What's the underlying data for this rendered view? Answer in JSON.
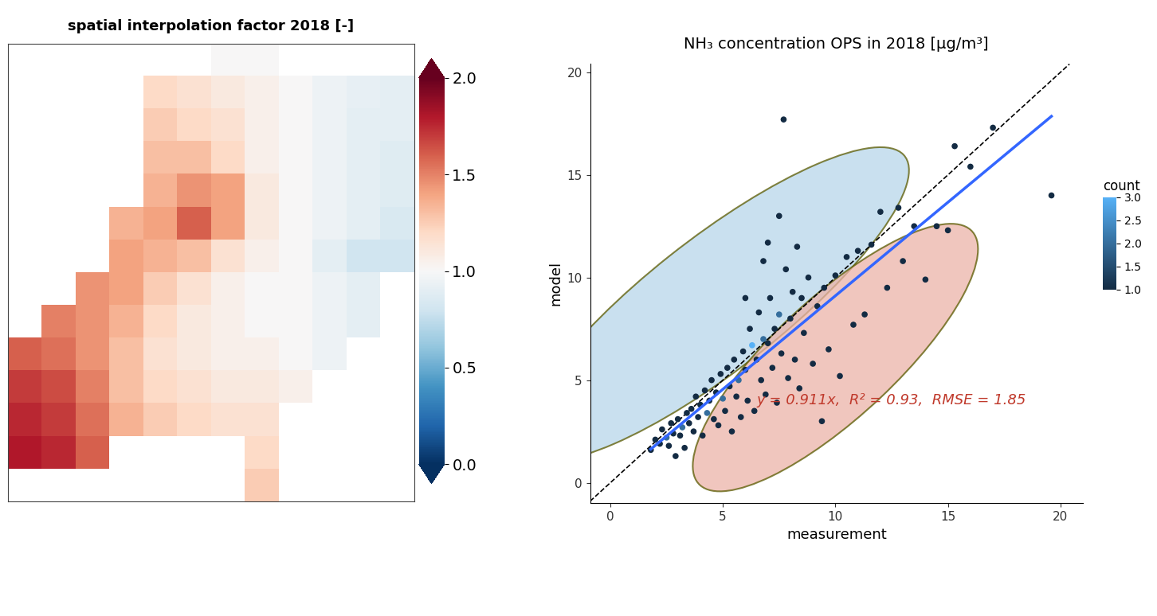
{
  "chart_data": [
    {
      "type": "heatmap",
      "title": "spatial interpolation factor 2018 [-]",
      "tick_labels": false,
      "cells": [
        [
          null,
          null,
          null,
          null,
          null,
          null,
          1.0,
          1.0,
          null,
          null,
          null,
          null
        ],
        [
          null,
          null,
          null,
          null,
          1.2,
          1.15,
          1.1,
          1.05,
          1.0,
          0.95,
          0.92,
          0.9
        ],
        [
          null,
          null,
          null,
          null,
          1.25,
          1.2,
          1.15,
          1.05,
          1.0,
          0.95,
          0.9,
          0.9
        ],
        [
          null,
          null,
          null,
          null,
          1.3,
          1.3,
          1.2,
          1.05,
          1.0,
          0.95,
          0.9,
          0.88
        ],
        [
          null,
          null,
          null,
          null,
          1.35,
          1.45,
          1.4,
          1.1,
          1.0,
          0.95,
          0.9,
          0.88
        ],
        [
          null,
          null,
          null,
          1.35,
          1.4,
          1.6,
          1.4,
          1.1,
          1.0,
          0.95,
          0.9,
          0.85
        ],
        [
          null,
          null,
          null,
          1.4,
          1.35,
          1.3,
          1.15,
          1.05,
          1.0,
          0.9,
          0.8,
          0.8
        ],
        [
          null,
          null,
          1.45,
          1.4,
          1.25,
          1.15,
          1.05,
          1.0,
          1.0,
          0.95,
          0.9,
          null
        ],
        [
          null,
          1.5,
          1.45,
          1.35,
          1.2,
          1.1,
          1.05,
          1.0,
          1.0,
          0.95,
          0.9,
          null
        ],
        [
          1.6,
          1.55,
          1.45,
          1.3,
          1.15,
          1.1,
          1.05,
          1.05,
          1.0,
          0.95,
          null,
          null
        ],
        [
          1.7,
          1.65,
          1.5,
          1.3,
          1.2,
          1.15,
          1.1,
          1.1,
          1.05,
          null,
          null,
          null
        ],
        [
          1.75,
          1.7,
          1.55,
          1.35,
          1.25,
          1.2,
          1.15,
          1.15,
          null,
          null,
          null,
          null
        ],
        [
          1.8,
          1.75,
          1.6,
          null,
          null,
          null,
          null,
          1.2,
          null,
          null,
          null,
          null
        ],
        [
          null,
          null,
          null,
          null,
          null,
          null,
          null,
          1.25,
          null,
          null,
          null,
          null
        ]
      ],
      "colorbar": {
        "range": [
          0,
          2
        ],
        "ticks": [
          {
            "value": 0,
            "label": "0.0"
          },
          0.5,
          {
            "value": 1,
            "label": "1.0"
          },
          1.5,
          {
            "value": 2,
            "label": "2.0"
          }
        ]
      }
    },
    {
      "type": "scatter",
      "title": "NH₃ concentration OPS in 2018 [µg/m³]",
      "x_label": "measurement",
      "y_label": "model",
      "xlim": [
        -0.9,
        21.0
      ],
      "ylim": [
        -1.0,
        20.4
      ],
      "xticks": [
        0,
        5,
        10,
        15,
        20
      ],
      "yticks": [
        0,
        5,
        10,
        15,
        20
      ],
      "annotation": "y = 0.911x,  R² = 0.93,  RMSE = 1.85",
      "reference_slope": 1,
      "fit": {
        "slope": 0.911,
        "x": [
          1.8,
          19.6
        ],
        "color": "#3366ff"
      },
      "count_colorbar": {
        "title": "count",
        "range": [
          1,
          3
        ],
        "ticks": [
          {
            "value": 1,
            "label": "1.0"
          },
          1.5,
          {
            "value": 2,
            "label": "2.0"
          },
          2.5,
          {
            "value": 3,
            "label": "3.0"
          }
        ]
      },
      "points": [
        [
          1.8,
          1.6,
          1
        ],
        [
          2.0,
          2.1,
          1
        ],
        [
          2.2,
          1.9,
          1
        ],
        [
          2.3,
          2.6,
          1
        ],
        [
          2.5,
          2.2,
          2
        ],
        [
          2.6,
          1.8,
          1
        ],
        [
          2.7,
          2.9,
          1
        ],
        [
          2.8,
          2.4,
          1
        ],
        [
          2.9,
          1.3,
          1
        ],
        [
          3.0,
          3.1,
          1
        ],
        [
          3.1,
          2.3,
          1
        ],
        [
          3.2,
          2.7,
          2
        ],
        [
          3.3,
          1.7,
          1
        ],
        [
          3.4,
          3.4,
          1
        ],
        [
          3.5,
          2.9,
          1
        ],
        [
          3.6,
          3.6,
          1
        ],
        [
          3.7,
          2.5,
          1
        ],
        [
          3.8,
          4.2,
          1
        ],
        [
          3.9,
          3.2,
          1
        ],
        [
          4.0,
          3.8,
          1
        ],
        [
          4.1,
          2.3,
          1
        ],
        [
          4.2,
          4.5,
          1
        ],
        [
          4.3,
          3.4,
          2
        ],
        [
          4.4,
          4.0,
          1
        ],
        [
          4.5,
          5.0,
          1
        ],
        [
          4.6,
          3.1,
          1
        ],
        [
          4.7,
          4.4,
          1
        ],
        [
          4.8,
          2.8,
          1
        ],
        [
          4.9,
          5.3,
          1
        ],
        [
          5.0,
          4.1,
          2
        ],
        [
          5.1,
          3.5,
          1
        ],
        [
          5.2,
          5.6,
          1
        ],
        [
          5.3,
          4.7,
          1
        ],
        [
          5.4,
          2.5,
          1
        ],
        [
          5.5,
          6.0,
          1
        ],
        [
          5.6,
          4.2,
          1
        ],
        [
          5.7,
          5.0,
          2
        ],
        [
          5.8,
          3.2,
          1
        ],
        [
          5.9,
          6.4,
          1
        ],
        [
          6.0,
          5.5,
          1
        ],
        [
          6.0,
          9.0,
          1
        ],
        [
          6.1,
          4.0,
          1
        ],
        [
          6.2,
          7.5,
          1
        ],
        [
          6.3,
          6.7,
          3
        ],
        [
          6.4,
          3.5,
          1
        ],
        [
          6.5,
          6.0,
          1
        ],
        [
          6.6,
          8.3,
          1
        ],
        [
          6.7,
          5.0,
          1
        ],
        [
          6.8,
          7.0,
          2
        ],
        [
          6.8,
          10.8,
          1
        ],
        [
          6.9,
          4.3,
          1
        ],
        [
          7.0,
          6.8,
          1
        ],
        [
          7.0,
          11.7,
          1
        ],
        [
          7.1,
          9.0,
          1
        ],
        [
          7.2,
          5.6,
          1
        ],
        [
          7.3,
          7.5,
          1
        ],
        [
          7.4,
          3.9,
          1
        ],
        [
          7.5,
          8.2,
          2
        ],
        [
          7.5,
          13.0,
          1
        ],
        [
          7.6,
          6.3,
          1
        ],
        [
          7.7,
          17.7,
          1
        ],
        [
          7.8,
          10.4,
          1
        ],
        [
          7.9,
          5.1,
          1
        ],
        [
          8.0,
          8.0,
          1
        ],
        [
          8.1,
          9.3,
          1
        ],
        [
          8.2,
          6.0,
          1
        ],
        [
          8.3,
          11.5,
          1
        ],
        [
          8.4,
          4.6,
          1
        ],
        [
          8.5,
          9.0,
          1
        ],
        [
          8.6,
          7.3,
          1
        ],
        [
          8.8,
          10.0,
          1
        ],
        [
          9.0,
          5.8,
          1
        ],
        [
          9.2,
          8.6,
          1
        ],
        [
          9.4,
          3.0,
          1
        ],
        [
          9.5,
          9.5,
          1
        ],
        [
          9.7,
          6.5,
          1
        ],
        [
          10.0,
          10.1,
          1
        ],
        [
          10.2,
          5.2,
          1
        ],
        [
          10.5,
          11.0,
          1
        ],
        [
          10.8,
          7.7,
          1
        ],
        [
          11.0,
          11.3,
          1
        ],
        [
          11.3,
          8.2,
          1
        ],
        [
          11.6,
          11.6,
          1
        ],
        [
          12.0,
          13.2,
          1
        ],
        [
          12.3,
          9.5,
          1
        ],
        [
          12.8,
          13.4,
          1
        ],
        [
          13.0,
          10.8,
          1
        ],
        [
          13.5,
          12.5,
          1
        ],
        [
          14.0,
          9.9,
          1
        ],
        [
          14.5,
          12.5,
          1
        ],
        [
          15.0,
          12.3,
          1
        ],
        [
          15.3,
          16.4,
          1
        ],
        [
          16.0,
          15.4,
          1
        ],
        [
          17.0,
          17.3,
          1
        ],
        [
          19.6,
          14.0,
          1
        ]
      ]
    }
  ]
}
